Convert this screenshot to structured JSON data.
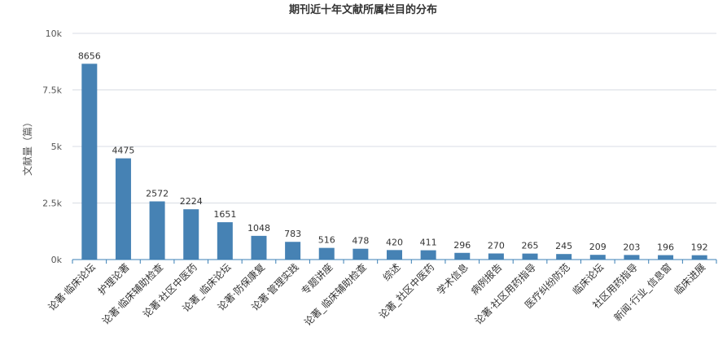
{
  "colors": {
    "bar": "#4682b4",
    "axis": "#3a7fb5",
    "grid": "#d8dde4"
  },
  "chart_data": {
    "type": "bar",
    "title": "期刊近十年文献所属栏目的分布",
    "xlabel": "",
    "ylabel": "文献量（篇）",
    "ylim": [
      0,
      10000
    ],
    "yticks": [
      {
        "value": 0,
        "label": "0k"
      },
      {
        "value": 2500,
        "label": "2.5k"
      },
      {
        "value": 5000,
        "label": "5k"
      },
      {
        "value": 7500,
        "label": "7.5k"
      },
      {
        "value": 10000,
        "label": "10k"
      }
    ],
    "grid": true,
    "categories": [
      "论著·临床论坛",
      "护理论著",
      "论著·临床辅助检查",
      "论著·社区中医药",
      "论著_临床论坛",
      "论著·防保康复",
      "论著·管理实践",
      "专题讲座",
      "论著_临床辅助检查",
      "综述",
      "论著_社区中医药",
      "学术信息",
      "病例报告",
      "论著·社区用药指导",
      "医疗纠纷防范",
      "临床论坛",
      "社区用药指导",
      "新闻·行业_信息窗",
      "临床进展"
    ],
    "values": [
      8656,
      4475,
      2572,
      2224,
      1651,
      1048,
      783,
      516,
      478,
      420,
      411,
      296,
      270,
      265,
      245,
      209,
      203,
      196,
      192
    ]
  }
}
